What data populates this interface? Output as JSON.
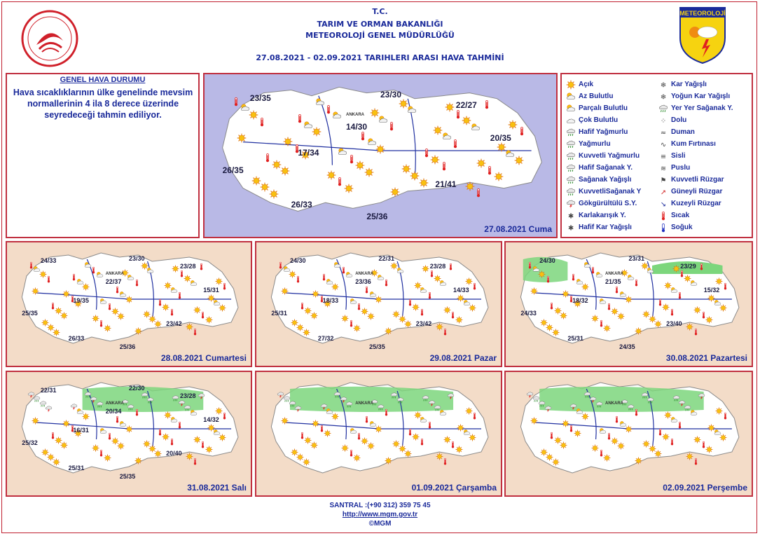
{
  "header": {
    "line1": "T.C.",
    "line2": "TARIM VE ORMAN BAKANLIĞI",
    "line3": "METEOROLOJİ  GENEL  MÜDÜRLÜĞÜ",
    "range_title": "27.08.2021  -  02.09.2021    TARIHLERI  ARASI  HAVA  TAHMİNİ",
    "logo_text": "METEOROLOJİ"
  },
  "general": {
    "title": "GENEL HAVA DURUMU",
    "text": "Hava sıcaklıklarının  ülke genelinde mevsim normallerinin 4 ila 8 derece üzerinde seyredeceği tahmin ediliyor."
  },
  "legend": [
    {
      "label": "Açık",
      "icon": "sun-icon"
    },
    {
      "label": "Az Bulutlu",
      "icon": "sun-small-cloud-icon"
    },
    {
      "label": "Parçalı Bulutlu",
      "icon": "sun-cloud-icon"
    },
    {
      "label": "Çok Bulutlu",
      "icon": "cloud-icon"
    },
    {
      "label": "Hafif Yağmurlu",
      "icon": "light-rain-icon"
    },
    {
      "label": "Yağmurlu",
      "icon": "rain-icon"
    },
    {
      "label": "Kuvvetli Yağmurlu",
      "icon": "heavy-rain-icon"
    },
    {
      "label": "Hafif Sağanak Y.",
      "icon": "light-shower-icon"
    },
    {
      "label": "Sağanak Yağışlı",
      "icon": "shower-icon"
    },
    {
      "label": "KuvvetliSağanak Y",
      "icon": "heavy-shower-icon"
    },
    {
      "label": "Gökgürültülü S.Y.",
      "icon": "thunderstorm-icon"
    },
    {
      "label": "Karlakarışık Y.",
      "icon": "sleet-icon"
    },
    {
      "label": "Hafif Kar Yağışlı",
      "icon": "light-snow-icon"
    },
    {
      "label": "Kar Yağışlı",
      "icon": "snow-icon"
    },
    {
      "label": "Yoğun Kar Yağışlı",
      "icon": "heavy-snow-icon"
    },
    {
      "label": "Yer Yer Sağanak Y.",
      "icon": "scattered-shower-icon"
    },
    {
      "label": "Dolu",
      "icon": "hail-icon"
    },
    {
      "label": "Duman",
      "icon": "smoke-icon"
    },
    {
      "label": "Kum Fırtınası",
      "icon": "sandstorm-icon"
    },
    {
      "label": "Sisli",
      "icon": "fog-icon"
    },
    {
      "label": "Puslu",
      "icon": "haze-icon"
    },
    {
      "label": "Kuvvetli Rüzgar",
      "icon": "strong-wind-icon"
    },
    {
      "label": "Güneyli Rüzgar",
      "icon": "south-wind-icon"
    },
    {
      "label": "Kuzeyli Rüzgar",
      "icon": "north-wind-icon"
    },
    {
      "label": "Sıcak",
      "icon": "hot-thermometer-icon"
    },
    {
      "label": "Soğuk",
      "icon": "cold-thermometer-icon"
    }
  ],
  "maps": [
    {
      "date": "27.08.2021 Cuma",
      "temps": [
        "23/35",
        "23/30",
        "22/27",
        "14/30",
        "20/35",
        "17/34",
        "26/35",
        "21/41",
        "26/33",
        "25/36"
      ],
      "city": "ANKARA"
    },
    {
      "date": "28.08.2021 Cumartesi",
      "temps": [
        "24/33",
        "23/30",
        "23/28",
        "22/37",
        "15/31",
        "19/35",
        "25/35",
        "23/42",
        "26/33",
        "25/36"
      ],
      "city": "ANKARA"
    },
    {
      "date": "29.08.2021 Pazar",
      "temps": [
        "24/30",
        "22/31",
        "23/28",
        "23/36",
        "14/33",
        "18/33",
        "25/31",
        "23/42",
        "27/32",
        "25/35"
      ],
      "city": "ANKARA"
    },
    {
      "date": "30.08.2021 Pazartesi",
      "temps": [
        "24/30",
        "23/31",
        "23/29",
        "21/35",
        "15/32",
        "18/32",
        "24/33",
        "23/40",
        "25/31",
        "24/35"
      ],
      "city": "ANKARA"
    },
    {
      "date": "31.08.2021 Salı",
      "temps": [
        "22/31",
        "22/30",
        "23/28",
        "20/34",
        "14/32",
        "16/31",
        "25/32",
        "20/40",
        "25/31",
        "25/35"
      ],
      "city": "ANKARA"
    },
    {
      "date": "01.09.2021 Çarşamba",
      "temps": [],
      "city": "ANKARA"
    },
    {
      "date": "02.09.2021 Perşembe",
      "temps": [],
      "city": "ANKARA"
    }
  ],
  "footer": {
    "phone": "SANTRAL :(+90 312) 359 75 45",
    "url": "http://www.mgm.gov.tr",
    "copy": "©MGM"
  },
  "colors": {
    "title_blue": "#1a2a9a",
    "border_red": "#c03040",
    "map_bg": "#f3dcc8",
    "sea": "#b9b9e6",
    "rain_green": "#7cd67c"
  }
}
